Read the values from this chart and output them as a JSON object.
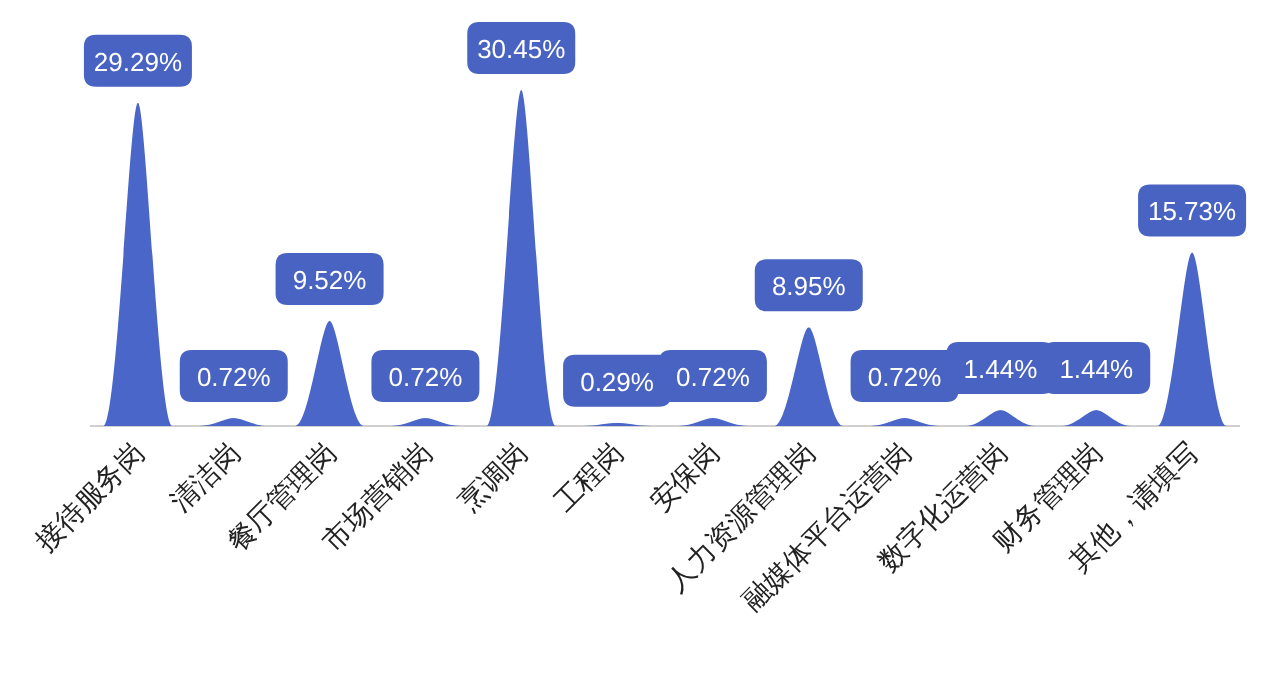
{
  "chart_data": {
    "type": "bar",
    "categories": [
      "接待服务岗",
      "清洁岗",
      "餐厅管理岗",
      "市场营销岗",
      "烹调岗",
      "工程岗",
      "安保岗",
      "人力资源管理岗",
      "融媒体平台运营岗",
      "数字化运营岗",
      "财务管理岗",
      "其他，请填写"
    ],
    "values": [
      29.29,
      0.72,
      9.52,
      0.72,
      30.45,
      0.29,
      0.72,
      8.95,
      0.72,
      1.44,
      1.44,
      15.73
    ],
    "value_labels": [
      "29.29%",
      "0.72%",
      "9.52%",
      "0.72%",
      "30.45%",
      "0.29%",
      "0.72%",
      "8.95%",
      "0.72%",
      "1.44%",
      "1.44%",
      "15.73%"
    ],
    "color": "#4a66c8"
  }
}
